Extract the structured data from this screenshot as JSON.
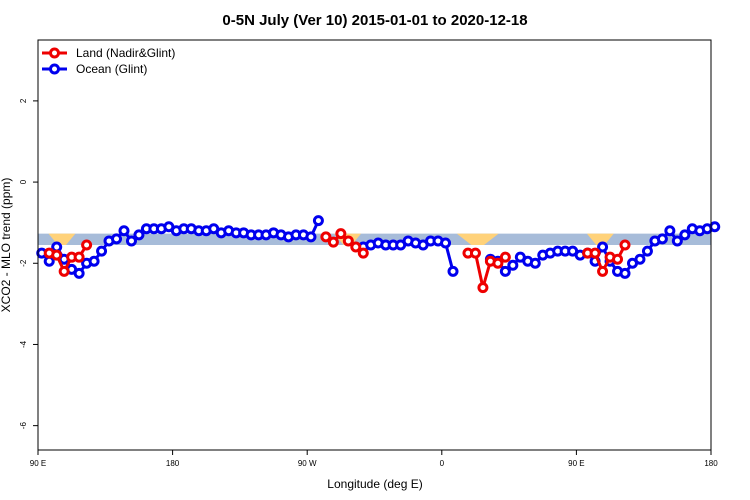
{
  "chart_data": {
    "type": "line",
    "title": "0-5N July (Ver 10)   2015-01-01 to 2020-12-18",
    "xlabel": "Longitude (deg E)",
    "ylabel": "XCO2 - MLO trend (ppm)",
    "x_ticks": [
      {
        "value": 90,
        "label": "90 E"
      },
      {
        "value": 180,
        "label": "180"
      },
      {
        "value": 270,
        "label": "90 W"
      },
      {
        "value": 360,
        "label": "0"
      },
      {
        "value": 450,
        "label": "90 E"
      },
      {
        "value": 540,
        "label": "180"
      }
    ],
    "y_ticks": [
      {
        "value": 2,
        "label": "2"
      },
      {
        "value": 0,
        "label": "0"
      },
      {
        "value": -2,
        "label": "-2"
      },
      {
        "value": -4,
        "label": "-4"
      },
      {
        "value": -6,
        "label": "-6"
      }
    ],
    "xlim": [
      90,
      540
    ],
    "ylim": [
      -6.6,
      3.5
    ],
    "legend_position": "top-left",
    "grid": false,
    "reference_band": {
      "ymin": -1.55,
      "ymax": -1.27,
      "color": "#a7bcd9"
    },
    "land_mask_color": "#ffd27a",
    "land_mask_ranges": [
      [
        97,
        115
      ],
      [
        288,
        306
      ],
      [
        370,
        398
      ],
      [
        457,
        475
      ]
    ],
    "series": [
      {
        "name": "Land (Nadir&Glint)",
        "color": "#ee0000",
        "segments": [
          [
            [
              97.5,
              -1.75
            ],
            [
              102.5,
              -1.8
            ],
            [
              107.5,
              -2.2
            ],
            [
              112.5,
              -1.85
            ],
            [
              117.5,
              -1.85
            ],
            [
              122.5,
              -1.55
            ]
          ],
          [
            [
              282.5,
              -1.35
            ],
            [
              287.5,
              -1.48
            ],
            [
              292.5,
              -1.27
            ],
            [
              297.5,
              -1.45
            ],
            [
              302.5,
              -1.6
            ],
            [
              307.5,
              -1.75
            ]
          ],
          [
            [
              377.5,
              -1.75
            ],
            [
              382.5,
              -1.75
            ],
            [
              387.5,
              -2.6
            ],
            [
              392.5,
              -1.95
            ],
            [
              397.5,
              -2.0
            ],
            [
              402.5,
              -1.85
            ]
          ],
          [
            [
              457.5,
              -1.75
            ],
            [
              462.5,
              -1.75
            ],
            [
              467.5,
              -2.2
            ],
            [
              472.5,
              -1.85
            ],
            [
              477.5,
              -1.9
            ],
            [
              482.5,
              -1.55
            ]
          ]
        ]
      },
      {
        "name": "Ocean (Glint)",
        "color": "#0000ee",
        "segments": [
          [
            [
              92.5,
              -1.75
            ],
            [
              97.5,
              -1.95
            ],
            [
              102.5,
              -1.6
            ],
            [
              107.5,
              -1.9
            ],
            [
              112.5,
              -2.15
            ],
            [
              117.5,
              -2.25
            ],
            [
              122.5,
              -2.0
            ],
            [
              127.5,
              -1.95
            ],
            [
              132.5,
              -1.7
            ],
            [
              137.5,
              -1.45
            ],
            [
              142.5,
              -1.4
            ],
            [
              147.5,
              -1.2
            ],
            [
              152.5,
              -1.45
            ],
            [
              157.5,
              -1.3
            ],
            [
              162.5,
              -1.15
            ],
            [
              167.5,
              -1.15
            ],
            [
              172.5,
              -1.15
            ],
            [
              177.5,
              -1.1
            ],
            [
              182.5,
              -1.2
            ],
            [
              187.5,
              -1.15
            ],
            [
              192.5,
              -1.15
            ],
            [
              197.5,
              -1.2
            ],
            [
              202.5,
              -1.2
            ],
            [
              207.5,
              -1.15
            ],
            [
              212.5,
              -1.25
            ],
            [
              217.5,
              -1.2
            ],
            [
              222.5,
              -1.25
            ],
            [
              227.5,
              -1.25
            ],
            [
              232.5,
              -1.3
            ],
            [
              237.5,
              -1.3
            ],
            [
              242.5,
              -1.3
            ],
            [
              247.5,
              -1.25
            ],
            [
              252.5,
              -1.3
            ],
            [
              257.5,
              -1.35
            ],
            [
              262.5,
              -1.3
            ],
            [
              267.5,
              -1.3
            ],
            [
              272.5,
              -1.35
            ],
            [
              277.5,
              -0.95
            ]
          ],
          [
            [
              307.5,
              -1.6
            ],
            [
              312.5,
              -1.55
            ],
            [
              317.5,
              -1.5
            ],
            [
              322.5,
              -1.55
            ],
            [
              327.5,
              -1.55
            ],
            [
              332.5,
              -1.55
            ],
            [
              337.5,
              -1.45
            ],
            [
              342.5,
              -1.5
            ],
            [
              347.5,
              -1.55
            ],
            [
              352.5,
              -1.45
            ],
            [
              357.5,
              -1.45
            ],
            [
              362.5,
              -1.5
            ],
            [
              367.5,
              -2.2
            ]
          ],
          [
            [
              392.5,
              -1.9
            ],
            [
              397.5,
              -1.95
            ],
            [
              402.5,
              -2.2
            ],
            [
              407.5,
              -2.05
            ],
            [
              412.5,
              -1.85
            ],
            [
              417.5,
              -1.95
            ],
            [
              422.5,
              -2.0
            ],
            [
              427.5,
              -1.8
            ],
            [
              432.5,
              -1.75
            ],
            [
              437.5,
              -1.7
            ],
            [
              442.5,
              -1.7
            ],
            [
              447.5,
              -1.7
            ],
            [
              452.5,
              -1.8
            ],
            [
              457.5,
              -1.75
            ],
            [
              462.5,
              -1.95
            ],
            [
              467.5,
              -1.6
            ],
            [
              472.5,
              -1.95
            ],
            [
              477.5,
              -2.2
            ],
            [
              482.5,
              -2.25
            ],
            [
              487.5,
              -2.0
            ],
            [
              492.5,
              -1.9
            ],
            [
              497.5,
              -1.7
            ],
            [
              502.5,
              -1.45
            ],
            [
              507.5,
              -1.4
            ],
            [
              512.5,
              -1.2
            ],
            [
              517.5,
              -1.45
            ],
            [
              522.5,
              -1.3
            ],
            [
              527.5,
              -1.15
            ],
            [
              532.5,
              -1.2
            ],
            [
              537.5,
              -1.15
            ],
            [
              542.5,
              -1.1
            ]
          ]
        ]
      }
    ]
  }
}
